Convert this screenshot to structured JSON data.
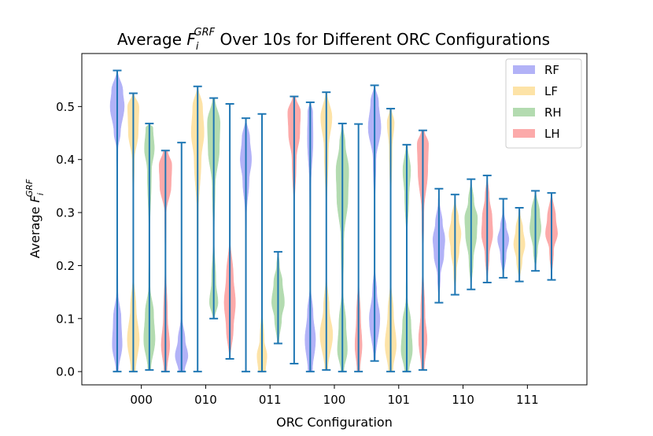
{
  "chart_data": {
    "type": "violin",
    "title_prefix": "Average ",
    "title_symbol": "F",
    "title_sub": "i",
    "title_sup": "GRF",
    "title_suffix": " Over 10s for Different ORC Configurations",
    "xlabel": "ORC Configuration",
    "ylabel_prefix": "Average ",
    "ylabel_symbol": "F",
    "ylabel_sub": "i",
    "ylabel_sup": "GRF",
    "categories": [
      "000",
      "010",
      "011",
      "100",
      "101",
      "110",
      "111"
    ],
    "ylim": [
      -0.025,
      0.6
    ],
    "yticks": [
      "0.0",
      "0.1",
      "0.2",
      "0.3",
      "0.4",
      "0.5"
    ],
    "legend_position": "top-right",
    "series": [
      {
        "name": "RF",
        "color": "#b2b2f7",
        "mins": [
          0.0,
          0.0,
          0.0,
          0.0,
          0.02,
          0.13,
          0.177
        ],
        "maxs": [
          0.568,
          0.432,
          0.478,
          0.508,
          0.54,
          0.345,
          0.326
        ],
        "shapes": [
          [
            [
              0.0,
              0.15
            ],
            [
              0.05,
              0.7
            ],
            [
              0.1,
              0.55
            ],
            [
              0.15,
              0.1
            ],
            [
              0.3,
              0.02
            ],
            [
              0.42,
              0.1
            ],
            [
              0.45,
              0.45
            ],
            [
              0.5,
              1.0
            ],
            [
              0.53,
              0.8
            ],
            [
              0.568,
              0.05
            ]
          ],
          [
            [
              0.0,
              0.4
            ],
            [
              0.03,
              0.9
            ],
            [
              0.06,
              0.5
            ],
            [
              0.1,
              0.1
            ],
            [
              0.2,
              0.02
            ],
            [
              0.38,
              0.03
            ],
            [
              0.432,
              0.02
            ]
          ],
          [
            [
              0.0,
              0.02
            ],
            [
              0.2,
              0.02
            ],
            [
              0.3,
              0.1
            ],
            [
              0.36,
              0.45
            ],
            [
              0.4,
              0.8
            ],
            [
              0.44,
              0.55
            ],
            [
              0.478,
              0.02
            ]
          ],
          [
            [
              0.0,
              0.3
            ],
            [
              0.06,
              0.75
            ],
            [
              0.11,
              0.4
            ],
            [
              0.16,
              0.05
            ],
            [
              0.25,
              0.02
            ],
            [
              0.35,
              0.1
            ],
            [
              0.44,
              0.4
            ],
            [
              0.49,
              0.35
            ],
            [
              0.508,
              0.05
            ]
          ],
          [
            [
              0.02,
              0.1
            ],
            [
              0.1,
              0.75
            ],
            [
              0.15,
              0.3
            ],
            [
              0.2,
              0.03
            ],
            [
              0.3,
              0.02
            ],
            [
              0.4,
              0.2
            ],
            [
              0.46,
              0.9
            ],
            [
              0.51,
              0.55
            ],
            [
              0.54,
              0.05
            ]
          ],
          [
            [
              0.13,
              0.02
            ],
            [
              0.18,
              0.2
            ],
            [
              0.22,
              0.7
            ],
            [
              0.25,
              0.85
            ],
            [
              0.28,
              0.5
            ],
            [
              0.32,
              0.1
            ],
            [
              0.345,
              0.02
            ]
          ],
          [
            [
              0.177,
              0.02
            ],
            [
              0.22,
              0.4
            ],
            [
              0.25,
              0.8
            ],
            [
              0.275,
              0.4
            ],
            [
              0.3,
              0.1
            ],
            [
              0.326,
              0.02
            ]
          ]
        ]
      },
      {
        "name": "LF",
        "color": "#fde3a7",
        "mins": [
          0.0,
          0.0,
          0.0,
          0.003,
          0.0,
          0.145,
          0.17
        ],
        "maxs": [
          0.525,
          0.538,
          0.486,
          0.527,
          0.496,
          0.334,
          0.309
        ],
        "shapes": [
          [
            [
              0.0,
              0.3
            ],
            [
              0.06,
              0.85
            ],
            [
              0.12,
              0.4
            ],
            [
              0.18,
              0.05
            ],
            [
              0.3,
              0.02
            ],
            [
              0.4,
              0.15
            ],
            [
              0.45,
              0.7
            ],
            [
              0.5,
              0.8
            ],
            [
              0.525,
              0.1
            ]
          ],
          [
            [
              0.0,
              0.02
            ],
            [
              0.15,
              0.02
            ],
            [
              0.3,
              0.1
            ],
            [
              0.4,
              0.5
            ],
            [
              0.45,
              0.9
            ],
            [
              0.5,
              0.7
            ],
            [
              0.538,
              0.05
            ]
          ],
          [
            [
              0.0,
              0.5
            ],
            [
              0.03,
              0.7
            ],
            [
              0.06,
              0.3
            ],
            [
              0.12,
              0.03
            ],
            [
              0.3,
              0.02
            ],
            [
              0.486,
              0.02
            ]
          ],
          [
            [
              0.003,
              0.2
            ],
            [
              0.07,
              0.9
            ],
            [
              0.12,
              0.4
            ],
            [
              0.18,
              0.05
            ],
            [
              0.3,
              0.03
            ],
            [
              0.42,
              0.3
            ],
            [
              0.48,
              0.8
            ],
            [
              0.527,
              0.1
            ]
          ],
          [
            [
              0.0,
              0.3
            ],
            [
              0.05,
              0.8
            ],
            [
              0.11,
              0.4
            ],
            [
              0.17,
              0.05
            ],
            [
              0.3,
              0.02
            ],
            [
              0.42,
              0.2
            ],
            [
              0.47,
              0.5
            ],
            [
              0.496,
              0.1
            ]
          ],
          [
            [
              0.145,
              0.02
            ],
            [
              0.19,
              0.2
            ],
            [
              0.23,
              0.6
            ],
            [
              0.26,
              0.85
            ],
            [
              0.29,
              0.5
            ],
            [
              0.32,
              0.1
            ],
            [
              0.334,
              0.02
            ]
          ],
          [
            [
              0.17,
              0.02
            ],
            [
              0.21,
              0.4
            ],
            [
              0.24,
              0.8
            ],
            [
              0.27,
              0.5
            ],
            [
              0.3,
              0.1
            ],
            [
              0.309,
              0.02
            ]
          ]
        ]
      },
      {
        "name": "RH",
        "color": "#b3dbb0",
        "mins": [
          0.003,
          0.1,
          0.053,
          0.0,
          0.0,
          0.155,
          0.19
        ],
        "maxs": [
          0.468,
          0.516,
          0.226,
          0.468,
          0.428,
          0.363,
          0.341
        ],
        "shapes": [
          [
            [
              0.003,
              0.2
            ],
            [
              0.06,
              0.8
            ],
            [
              0.11,
              0.6
            ],
            [
              0.16,
              0.1
            ],
            [
              0.25,
              0.03
            ],
            [
              0.38,
              0.3
            ],
            [
              0.42,
              0.7
            ],
            [
              0.46,
              0.5
            ],
            [
              0.468,
              0.05
            ]
          ],
          [
            [
              0.1,
              0.1
            ],
            [
              0.13,
              0.6
            ],
            [
              0.17,
              0.3
            ],
            [
              0.25,
              0.05
            ],
            [
              0.35,
              0.2
            ],
            [
              0.42,
              0.8
            ],
            [
              0.47,
              0.9
            ],
            [
              0.516,
              0.15
            ]
          ],
          [
            [
              0.053,
              0.1
            ],
            [
              0.1,
              0.5
            ],
            [
              0.13,
              0.9
            ],
            [
              0.17,
              0.6
            ],
            [
              0.2,
              0.2
            ],
            [
              0.226,
              0.05
            ]
          ],
          [
            [
              0.0,
              0.2
            ],
            [
              0.04,
              0.7
            ],
            [
              0.09,
              0.5
            ],
            [
              0.15,
              0.1
            ],
            [
              0.25,
              0.2
            ],
            [
              0.33,
              0.8
            ],
            [
              0.38,
              0.9
            ],
            [
              0.43,
              0.4
            ],
            [
              0.468,
              0.05
            ]
          ],
          [
            [
              0.0,
              0.3
            ],
            [
              0.04,
              0.8
            ],
            [
              0.09,
              0.6
            ],
            [
              0.14,
              0.1
            ],
            [
              0.25,
              0.03
            ],
            [
              0.33,
              0.3
            ],
            [
              0.38,
              0.55
            ],
            [
              0.428,
              0.1
            ]
          ],
          [
            [
              0.155,
              0.02
            ],
            [
              0.21,
              0.3
            ],
            [
              0.26,
              0.8
            ],
            [
              0.29,
              0.9
            ],
            [
              0.32,
              0.4
            ],
            [
              0.363,
              0.02
            ]
          ],
          [
            [
              0.19,
              0.02
            ],
            [
              0.23,
              0.3
            ],
            [
              0.27,
              0.8
            ],
            [
              0.3,
              0.6
            ],
            [
              0.341,
              0.05
            ]
          ]
        ]
      },
      {
        "name": "LH",
        "color": "#fcaaaa",
        "mins": [
          0.0,
          0.024,
          0.015,
          0.0,
          0.003,
          0.168,
          0.173
        ],
        "maxs": [
          0.417,
          0.505,
          0.519,
          0.467,
          0.455,
          0.37,
          0.337
        ],
        "shapes": [
          [
            [
              0.0,
              0.2
            ],
            [
              0.05,
              0.6
            ],
            [
              0.1,
              0.3
            ],
            [
              0.2,
              0.05
            ],
            [
              0.3,
              0.1
            ],
            [
              0.35,
              0.8
            ],
            [
              0.39,
              0.9
            ],
            [
              0.417,
              0.3
            ]
          ],
          [
            [
              0.024,
              0.05
            ],
            [
              0.08,
              0.5
            ],
            [
              0.13,
              0.8
            ],
            [
              0.18,
              0.5
            ],
            [
              0.25,
              0.05
            ],
            [
              0.35,
              0.02
            ],
            [
              0.505,
              0.02
            ]
          ],
          [
            [
              0.015,
              0.02
            ],
            [
              0.3,
              0.02
            ],
            [
              0.4,
              0.3
            ],
            [
              0.45,
              0.8
            ],
            [
              0.49,
              0.9
            ],
            [
              0.519,
              0.2
            ]
          ],
          [
            [
              0.0,
              0.2
            ],
            [
              0.05,
              0.5
            ],
            [
              0.1,
              0.3
            ],
            [
              0.18,
              0.02
            ],
            [
              0.3,
              0.02
            ],
            [
              0.467,
              0.02
            ]
          ],
          [
            [
              0.003,
              0.2
            ],
            [
              0.06,
              0.6
            ],
            [
              0.11,
              0.3
            ],
            [
              0.2,
              0.05
            ],
            [
              0.3,
              0.15
            ],
            [
              0.38,
              0.7
            ],
            [
              0.43,
              0.8
            ],
            [
              0.455,
              0.2
            ]
          ],
          [
            [
              0.168,
              0.02
            ],
            [
              0.22,
              0.3
            ],
            [
              0.26,
              0.8
            ],
            [
              0.29,
              0.7
            ],
            [
              0.33,
              0.3
            ],
            [
              0.37,
              0.02
            ]
          ],
          [
            [
              0.173,
              0.02
            ],
            [
              0.23,
              0.3
            ],
            [
              0.26,
              0.85
            ],
            [
              0.29,
              0.6
            ],
            [
              0.337,
              0.05
            ]
          ]
        ]
      }
    ]
  }
}
